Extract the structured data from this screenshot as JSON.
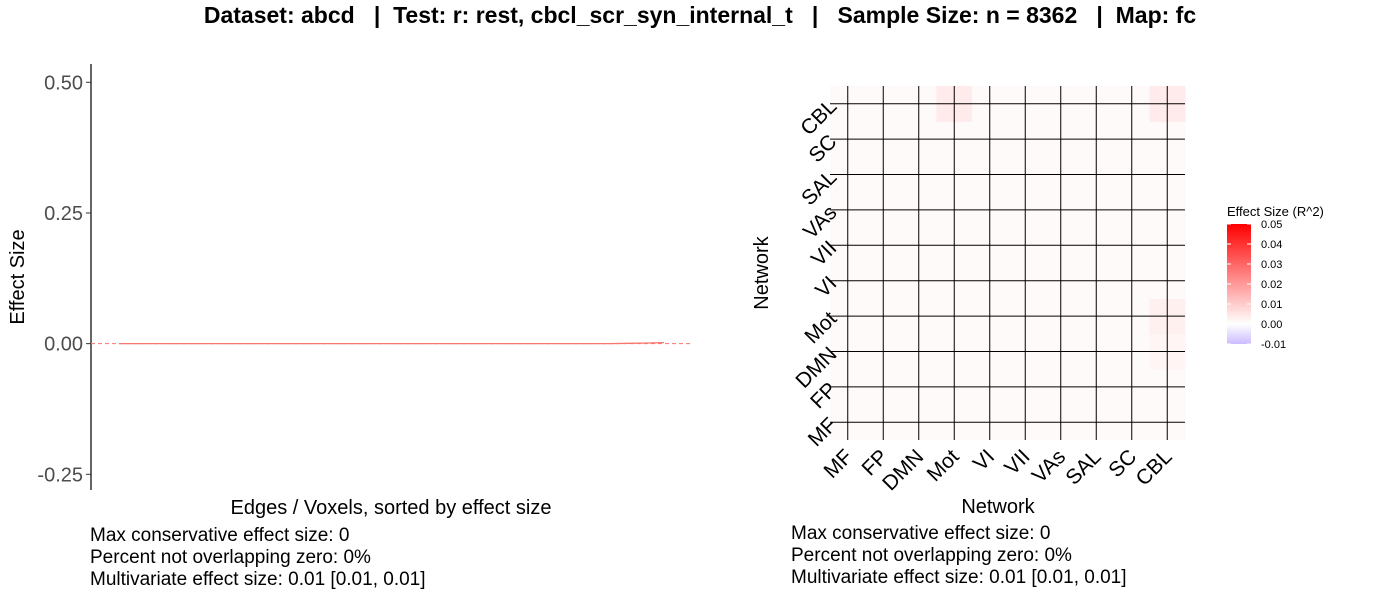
{
  "title": "Dataset: abcd   |  Test: r: rest, cbcl_scr_syn_internal_t   |   Sample Size: n = 8362   |  Map: fc",
  "colors": {
    "line": "#f8766d",
    "ref_line": "#f8766d",
    "grid_line": "#000000",
    "grad_high": "#ff0000",
    "grad_mid": "#ffffff",
    "grad_low": "#ccbbff"
  },
  "chart_data": [
    {
      "type": "line",
      "xlabel": "Edges / Voxels, sorted by effect size",
      "ylabel": "Effect Size",
      "ylim": [
        -0.28,
        0.535
      ],
      "yticks": [
        -0.25,
        0.0,
        0.25,
        0.5
      ],
      "ytick_labels": [
        "-0.25",
        "0.00",
        "0.25",
        "0.50"
      ],
      "reference_line": 0.0,
      "series": [
        {
          "x": [
            0,
            0.1,
            0.2,
            0.3,
            0.4,
            0.5,
            0.6,
            0.7,
            0.8,
            0.9,
            0.96,
            1.0
          ],
          "values": [
            0.0,
            0.0,
            0.0,
            0.0,
            0.0,
            0.0,
            0.0,
            0.0,
            0.0,
            0.0,
            0.001,
            0.002
          ]
        }
      ],
      "grid": false,
      "legend": "none"
    },
    {
      "type": "heatmap",
      "xlabel": "Network",
      "ylabel": "Network",
      "x_categories": [
        "MF",
        "FP",
        "DMN",
        "Mot",
        "VI",
        "VII",
        "VAs",
        "SAL",
        "SC",
        "CBL"
      ],
      "y_categories": [
        "MF",
        "FP",
        "DMN",
        "Mot",
        "VI",
        "VII",
        "VAs",
        "SAL",
        "SC",
        "CBL"
      ],
      "values": [
        [
          0.001,
          0.001,
          0.001,
          0.001,
          0.001,
          0.001,
          0.001,
          0.001,
          0.001,
          0.001
        ],
        [
          0.001,
          0.001,
          0.001,
          0.001,
          0.001,
          0.001,
          0.001,
          0.001,
          0.001,
          0.001
        ],
        [
          0.001,
          0.001,
          0.001,
          0.001,
          0.001,
          0.001,
          0.001,
          0.001,
          0.001,
          0.002
        ],
        [
          0.001,
          0.001,
          0.001,
          0.001,
          0.001,
          0.001,
          0.001,
          0.001,
          0.001,
          0.003
        ],
        [
          0.001,
          0.001,
          0.001,
          0.001,
          0.001,
          0.001,
          0.001,
          0.001,
          0.001,
          0.001
        ],
        [
          0.001,
          0.001,
          0.001,
          0.001,
          0.001,
          0.001,
          0.001,
          0.001,
          0.001,
          0.001
        ],
        [
          0.001,
          0.001,
          0.001,
          0.001,
          0.001,
          0.001,
          0.001,
          0.001,
          0.001,
          0.001
        ],
        [
          0.001,
          0.001,
          0.001,
          0.001,
          0.001,
          0.001,
          0.001,
          0.001,
          0.001,
          0.001
        ],
        [
          0.001,
          0.001,
          0.001,
          0.001,
          0.001,
          0.001,
          0.001,
          0.001,
          0.001,
          0.001
        ],
        [
          0.001,
          0.001,
          0.001,
          0.004,
          0.001,
          0.001,
          0.001,
          0.001,
          0.001,
          0.004
        ]
      ],
      "color_scale": {
        "title": "Effect Size (R^2)",
        "min": -0.01,
        "max": 0.05,
        "ticks": [
          -0.01,
          0.0,
          0.01,
          0.02,
          0.03,
          0.04,
          0.05
        ],
        "tick_labels": [
          "-0.01",
          "0.00",
          "0.01",
          "0.02",
          "0.03",
          "0.04",
          "0.05"
        ]
      },
      "legend": "right"
    }
  ],
  "left_stats": [
    "Max conservative effect size: 0",
    "Percent not overlapping zero: 0%",
    "Multivariate effect size: 0.01 [0.01, 0.01]"
  ],
  "right_stats": [
    "Max conservative effect size: 0",
    "Percent not overlapping zero: 0%",
    "Multivariate effect size: 0.01 [0.01, 0.01]"
  ]
}
